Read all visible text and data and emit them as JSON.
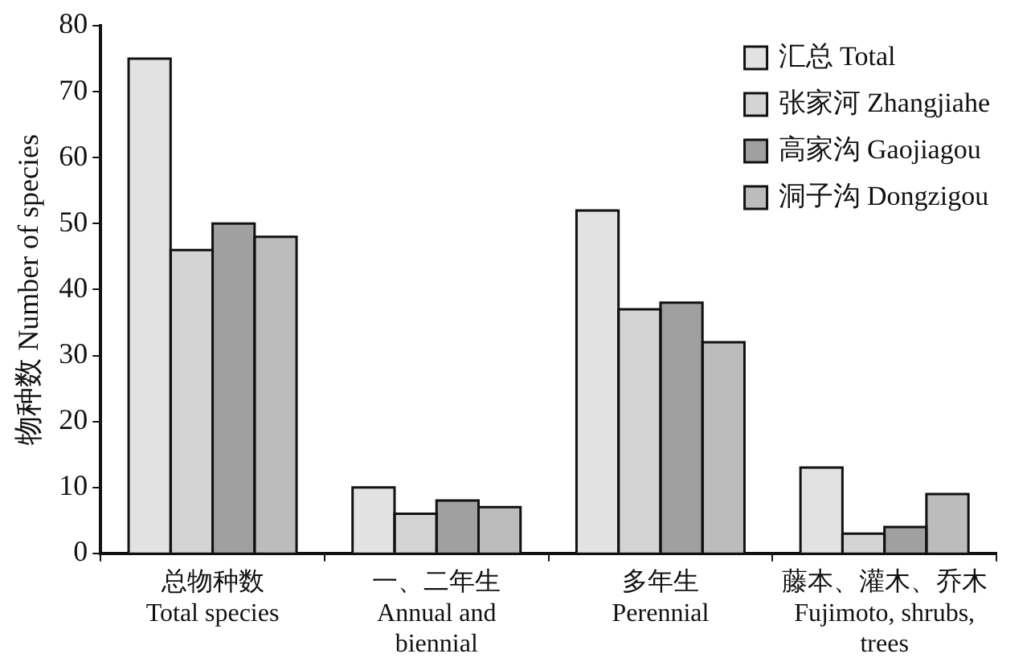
{
  "chart_data": {
    "type": "bar",
    "ylabel": "物种数 Number of species",
    "categories": [
      "总物种数\nTotal species",
      "一、二年生\nAnnual and\nbiennial",
      "多年生\nPerennial",
      "藤本、灌木、乔木\nFujimoto, shrubs,\ntrees"
    ],
    "series": [
      {
        "name": "汇总 Total",
        "color": "#e2e2e2",
        "values": [
          75,
          10,
          52,
          13
        ]
      },
      {
        "name": "张家河 Zhangjiahe",
        "color": "#d4d4d4",
        "values": [
          46,
          6,
          37,
          3
        ]
      },
      {
        "name": "高家沟 Gaojiagou",
        "color": "#a0a0a0",
        "values": [
          50,
          8,
          38,
          4
        ]
      },
      {
        "name": "洞子沟 Dongzigou",
        "color": "#bcbcbc",
        "values": [
          48,
          7,
          32,
          9
        ]
      }
    ],
    "ylim": [
      0,
      80
    ],
    "yticks": [
      0,
      10,
      20,
      30,
      40,
      50,
      60,
      70,
      80
    ],
    "grid": false,
    "legend": "top right"
  }
}
